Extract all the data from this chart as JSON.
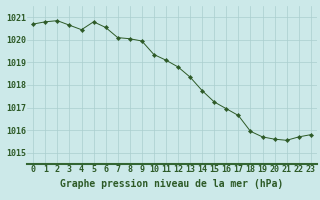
{
  "x": [
    0,
    1,
    2,
    3,
    4,
    5,
    6,
    7,
    8,
    9,
    10,
    11,
    12,
    13,
    14,
    15,
    16,
    17,
    18,
    19,
    20,
    21,
    22,
    23
  ],
  "y": [
    1020.7,
    1020.8,
    1020.85,
    1020.65,
    1020.45,
    1020.8,
    1020.55,
    1020.1,
    1020.05,
    1019.95,
    1019.35,
    1019.1,
    1018.8,
    1018.35,
    1017.75,
    1017.25,
    1016.95,
    1016.65,
    1015.95,
    1015.7,
    1015.6,
    1015.55,
    1015.7,
    1015.8
  ],
  "line_color": "#2d5a27",
  "marker": "D",
  "marker_size": 2.2,
  "bg_color": "#cce9e9",
  "grid_color": "#aacece",
  "xlabel": "Graphe pression niveau de la mer (hPa)",
  "xlabel_color": "#2d5a27",
  "tick_color": "#2d5a27",
  "bottom_bar_color": "#336633",
  "ylim": [
    1014.5,
    1021.5
  ],
  "yticks": [
    1015,
    1016,
    1017,
    1018,
    1019,
    1020,
    1021
  ],
  "xlim": [
    -0.5,
    23.5
  ],
  "xticks": [
    0,
    1,
    2,
    3,
    4,
    5,
    6,
    7,
    8,
    9,
    10,
    11,
    12,
    13,
    14,
    15,
    16,
    17,
    18,
    19,
    20,
    21,
    22,
    23
  ],
  "xlabel_fontsize": 7,
  "tick_fontsize": 6,
  "label_weight": "bold",
  "linewidth": 0.7
}
